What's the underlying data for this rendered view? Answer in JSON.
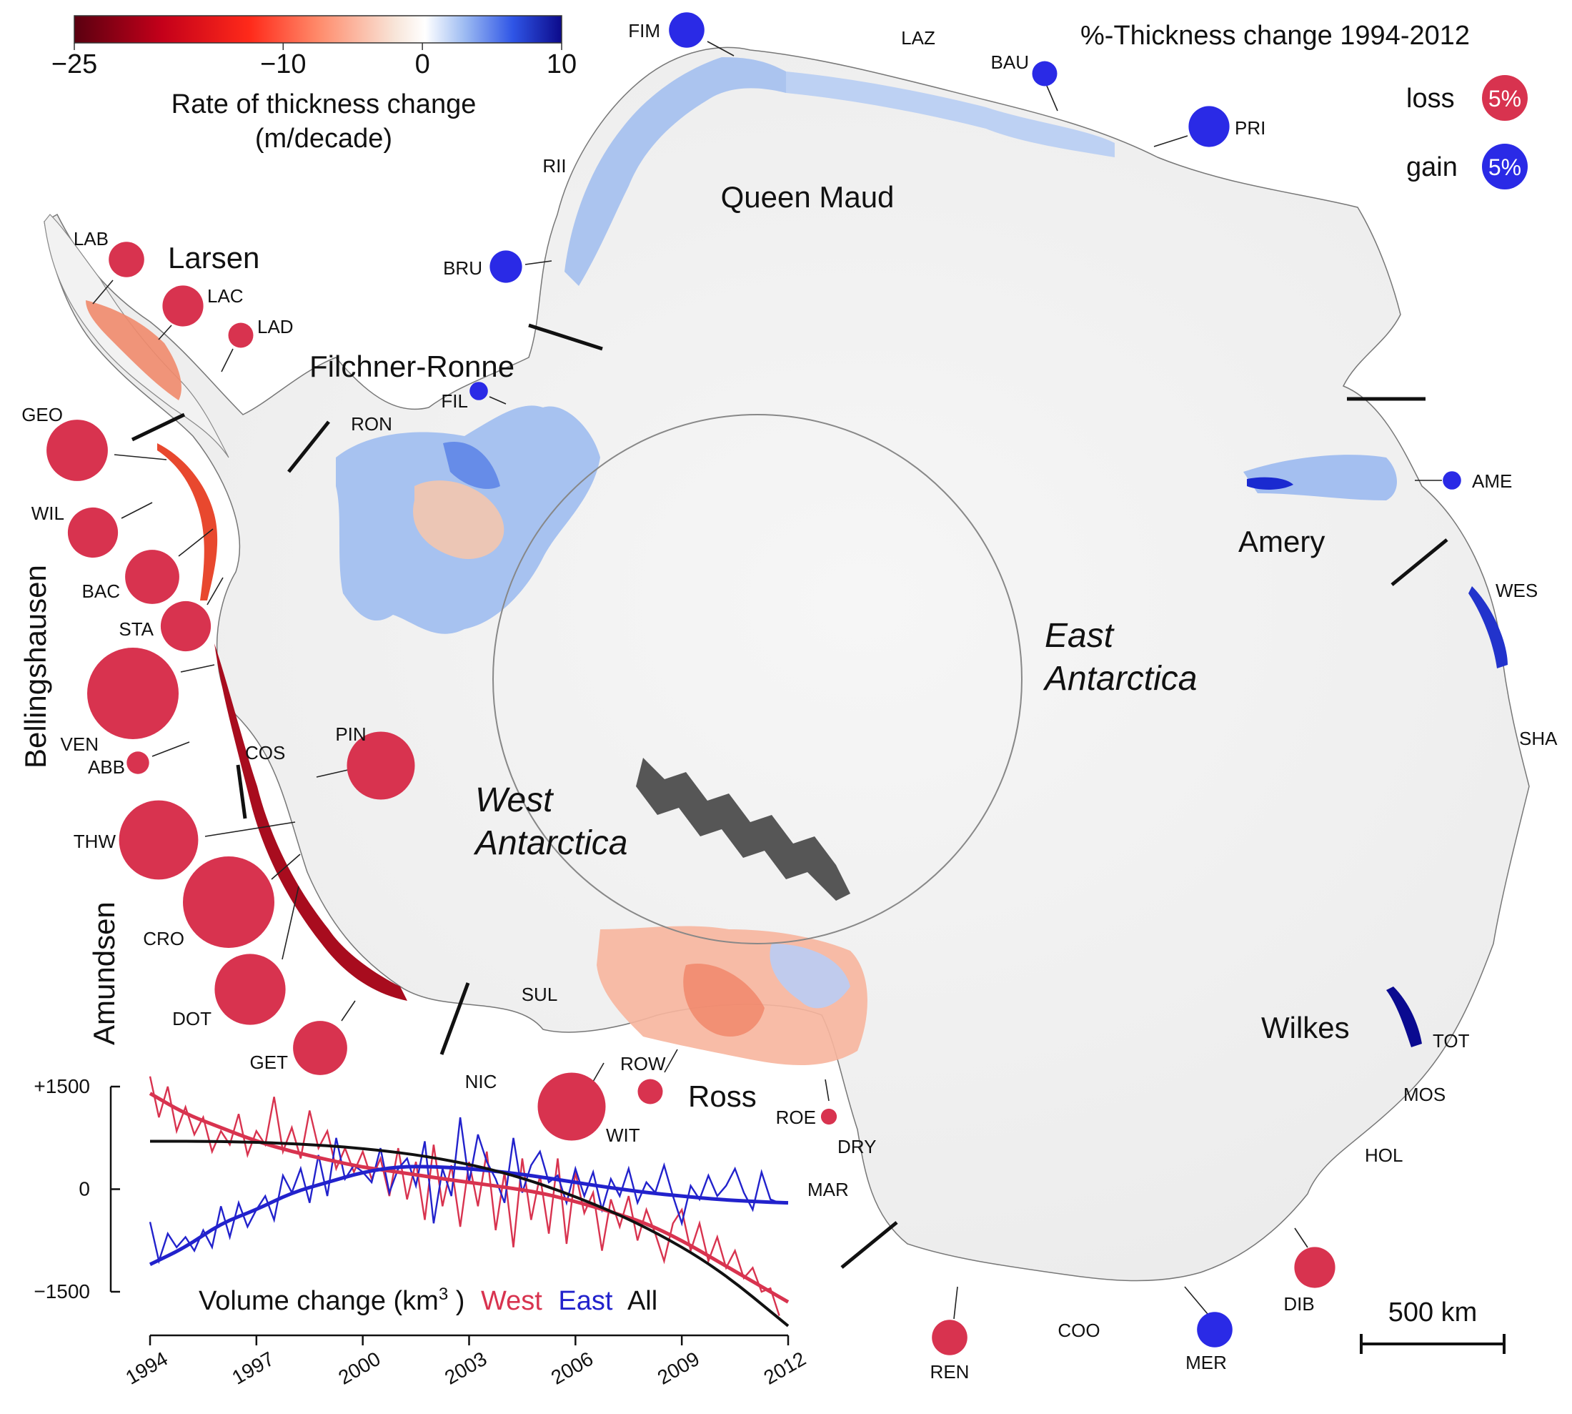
{
  "colorbar": {
    "ticks": [
      "−25",
      "−10",
      "0",
      "10"
    ],
    "tick_values": [
      -25,
      -10,
      0,
      10
    ],
    "range": [
      -25,
      10
    ],
    "colors": [
      "#5a0010",
      "#c4001a",
      "#ff2a1a",
      "#ff8a6a",
      "#f8e6da",
      "#ffffff",
      "#9ebcf2",
      "#2f55e6",
      "#0c0a8a"
    ],
    "label_line1": "Rate of thickness change",
    "label_line2": "(m/decade)"
  },
  "title": "%-Thickness change 1994-2012",
  "legend": {
    "loss_label": "loss",
    "loss_value": "5%",
    "loss_color": "#d8334f",
    "gain_label": "gain",
    "gain_value": "5%",
    "gain_color": "#2a2ae6"
  },
  "regions": {
    "queen_maud": "Queen Maud",
    "larsen": "Larsen",
    "filchner_ronne": "Filchner-Ronne",
    "bellingshausen": "Bellingshausen",
    "amundsen": "Amundsen",
    "west_line1": "West",
    "west_line2": "Antarctica",
    "east_line1": "East",
    "east_line2": "Antarctica",
    "amery": "Amery",
    "wilkes": "Wilkes",
    "ross": "Ross"
  },
  "ice_shelves": [
    {
      "abbr": "FIM",
      "type": "gain",
      "percent": 3
    },
    {
      "abbr": "LAZ",
      "type": "none",
      "percent": 0
    },
    {
      "abbr": "BAU",
      "type": "gain",
      "percent": 1.5
    },
    {
      "abbr": "PRI",
      "type": "gain",
      "percent": 4
    },
    {
      "abbr": "RII",
      "type": "none",
      "percent": 0
    },
    {
      "abbr": "BRU",
      "type": "gain",
      "percent": 2.5
    },
    {
      "abbr": "LAB",
      "type": "loss",
      "percent": 3
    },
    {
      "abbr": "LAC",
      "type": "loss",
      "percent": 4
    },
    {
      "abbr": "LAD",
      "type": "loss",
      "percent": 1.5
    },
    {
      "abbr": "FIL",
      "type": "gain",
      "percent": 0.8
    },
    {
      "abbr": "RON",
      "type": "none",
      "percent": 0
    },
    {
      "abbr": "GEO",
      "type": "loss",
      "percent": 9
    },
    {
      "abbr": "WIL",
      "type": "loss",
      "percent": 6
    },
    {
      "abbr": "BAC",
      "type": "loss",
      "percent": 7
    },
    {
      "abbr": "STA",
      "type": "loss",
      "percent": 6
    },
    {
      "abbr": "VEN",
      "type": "loss",
      "percent": 20
    },
    {
      "abbr": "ABB",
      "type": "loss",
      "percent": 1.2
    },
    {
      "abbr": "COS",
      "type": "none",
      "percent": 0
    },
    {
      "abbr": "PIN",
      "type": "loss",
      "percent": 11
    },
    {
      "abbr": "THW",
      "type": "loss",
      "percent": 15
    },
    {
      "abbr": "CRO",
      "type": "loss",
      "percent": 20
    },
    {
      "abbr": "DOT",
      "type": "loss",
      "percent": 12
    },
    {
      "abbr": "GET",
      "type": "loss",
      "percent": 7
    },
    {
      "abbr": "NIC",
      "type": "none",
      "percent": 0
    },
    {
      "abbr": "SUL",
      "type": "none",
      "percent": 0
    },
    {
      "abbr": "WIT",
      "type": "loss",
      "percent": 11
    },
    {
      "abbr": "ROW",
      "type": "loss",
      "percent": 1.5
    },
    {
      "abbr": "ROE",
      "type": "loss",
      "percent": 0.6
    },
    {
      "abbr": "DRY",
      "type": "none",
      "percent": 0
    },
    {
      "abbr": "MAR",
      "type": "none",
      "percent": 0
    },
    {
      "abbr": "AME",
      "type": "gain",
      "percent": 0.8
    },
    {
      "abbr": "WES",
      "type": "none",
      "percent": 0
    },
    {
      "abbr": "SHA",
      "type": "none",
      "percent": 0
    },
    {
      "abbr": "TOT",
      "type": "none",
      "percent": 0
    },
    {
      "abbr": "MOS",
      "type": "none",
      "percent": 0
    },
    {
      "abbr": "HOL",
      "type": "none",
      "percent": 0
    },
    {
      "abbr": "DIB",
      "type": "loss",
      "percent": 4
    },
    {
      "abbr": "MER",
      "type": "gain",
      "percent": 3
    },
    {
      "abbr": "COO",
      "type": "none",
      "percent": 0
    },
    {
      "abbr": "REN",
      "type": "loss",
      "percent": 3
    }
  ],
  "scale_bar": {
    "label": "500 km",
    "km": 500
  },
  "chart_data": {
    "type": "line",
    "x_ticks": [
      "1994",
      "1997",
      "2000",
      "2003",
      "2006",
      "2009",
      "2012"
    ],
    "y_ticks": [
      "+1500",
      "0",
      "−1500"
    ],
    "xlim": [
      1994,
      2012
    ],
    "ylim": [
      -1500,
      1500
    ],
    "xlabel_prefix": "Volume change (km",
    "xlabel_sup": "3",
    "xlabel_suffix": " )",
    "legend_west": "West",
    "legend_east": "East",
    "legend_all": "All",
    "colors": {
      "West": "#d8334f",
      "East": "#2222cc",
      "All": "#111111"
    },
    "series": [
      {
        "name": "West",
        "x": [
          1994.0,
          1994.25,
          1994.5,
          1994.75,
          1995.0,
          1995.25,
          1995.5,
          1995.75,
          1996.0,
          1996.25,
          1996.5,
          1996.75,
          1997.0,
          1997.25,
          1997.5,
          1997.75,
          1998.0,
          1998.25,
          1998.5,
          1998.75,
          1999.0,
          1999.25,
          1999.5,
          1999.75,
          2000.0,
          2000.25,
          2000.5,
          2000.75,
          2001.0,
          2001.25,
          2001.5,
          2001.75,
          2002.0,
          2002.25,
          2002.5,
          2002.75,
          2003.0,
          2003.25,
          2003.5,
          2003.75,
          2004.0,
          2004.25,
          2004.5,
          2004.75,
          2005.0,
          2005.25,
          2005.5,
          2005.75,
          2006.0,
          2006.25,
          2006.5,
          2006.75,
          2007.0,
          2007.25,
          2007.5,
          2007.75,
          2008.0,
          2008.25,
          2008.5,
          2008.75,
          2009.0,
          2009.25,
          2009.5,
          2009.75,
          2010.0,
          2010.25,
          2010.5,
          2010.75,
          2011.0,
          2011.25,
          2011.5,
          2011.75
        ],
        "values": [
          1650,
          1050,
          1500,
          850,
          1200,
          800,
          1050,
          550,
          850,
          650,
          1100,
          500,
          850,
          650,
          1350,
          550,
          900,
          450,
          1150,
          600,
          850,
          300,
          600,
          250,
          550,
          150,
          450,
          -100,
          600,
          -150,
          400,
          -450,
          650,
          -250,
          350,
          -550,
          400,
          -250,
          550,
          -600,
          250,
          -850,
          450,
          -450,
          200,
          -650,
          450,
          -800,
          250,
          -350,
          -50,
          -900,
          -150,
          -550,
          -100,
          -750,
          -300,
          -650,
          -1050,
          -500,
          -300,
          -900,
          -500,
          -1050,
          -700,
          -1150,
          -900,
          -1300,
          -1150,
          -1500,
          -1450,
          -1850
        ]
      },
      {
        "name": "East",
        "x": [
          1994.0,
          1994.25,
          1994.5,
          1994.75,
          1995.0,
          1995.25,
          1995.5,
          1995.75,
          1996.0,
          1996.25,
          1996.5,
          1996.75,
          1997.0,
          1997.25,
          1997.5,
          1997.75,
          1998.0,
          1998.25,
          1998.5,
          1998.75,
          1999.0,
          1999.25,
          1999.5,
          1999.75,
          2000.0,
          2000.25,
          2000.5,
          2000.75,
          2001.0,
          2001.25,
          2001.5,
          2001.75,
          2002.0,
          2002.25,
          2002.5,
          2002.75,
          2003.0,
          2003.25,
          2003.5,
          2003.75,
          2004.0,
          2004.25,
          2004.5,
          2004.75,
          2005.0,
          2005.25,
          2005.5,
          2005.75,
          2006.0,
          2006.25,
          2006.5,
          2006.75,
          2007.0,
          2007.25,
          2007.5,
          2007.75,
          2008.0,
          2008.25,
          2008.5,
          2008.75,
          2009.0,
          2009.25,
          2009.5,
          2009.75,
          2010.0,
          2010.25,
          2010.5,
          2010.75,
          2011.0,
          2011.25,
          2011.5,
          2011.75
        ],
        "values": [
          -480,
          -1050,
          -650,
          -850,
          -700,
          -900,
          -600,
          -850,
          -250,
          -700,
          -200,
          -550,
          -300,
          -100,
          -450,
          200,
          -50,
          300,
          -200,
          500,
          -100,
          750,
          150,
          350,
          250,
          100,
          600,
          -50,
          300,
          450,
          50,
          700,
          -500,
          300,
          -100,
          1050,
          100,
          800,
          400,
          150,
          -200,
          750,
          -50,
          350,
          550,
          100,
          200,
          -200,
          300,
          -100,
          250,
          -300,
          150,
          -100,
          300,
          -200,
          100,
          -50,
          350,
          -100,
          -500,
          50,
          -150,
          200,
          -100,
          50,
          300,
          -50,
          -300,
          250,
          -150,
          -200
        ]
      },
      {
        "name": "All",
        "x": [
          1994,
          1996,
          1998,
          2000,
          2002,
          2004,
          2006,
          2008,
          2010,
          2012
        ],
        "values": [
          700,
          700,
          670,
          600,
          470,
          250,
          -100,
          -550,
          -1150,
          -2000
        ]
      }
    ],
    "fits": [
      {
        "name": "West",
        "x": [
          1994,
          1995,
          1996,
          1997,
          1998,
          1999,
          2000,
          2001,
          2002,
          2003,
          2004,
          2005,
          2006,
          2007,
          2008,
          2009,
          2010,
          2011,
          2012
        ],
        "values": [
          1400,
          1100,
          900,
          700,
          550,
          430,
          320,
          250,
          170,
          100,
          30,
          -50,
          -180,
          -330,
          -500,
          -750,
          -1050,
          -1350,
          -1650
        ]
      },
      {
        "name": "East",
        "x": [
          1994,
          1995,
          1996,
          1997,
          1998,
          1999,
          2000,
          2001,
          2002,
          2003,
          2004,
          2005,
          2006,
          2007,
          2008,
          2009,
          2010,
          2011,
          2012
        ],
        "values": [
          -1100,
          -850,
          -500,
          -300,
          -50,
          100,
          250,
          330,
          330,
          300,
          250,
          180,
          100,
          20,
          -50,
          -100,
          -150,
          -180,
          -200
        ]
      }
    ]
  }
}
